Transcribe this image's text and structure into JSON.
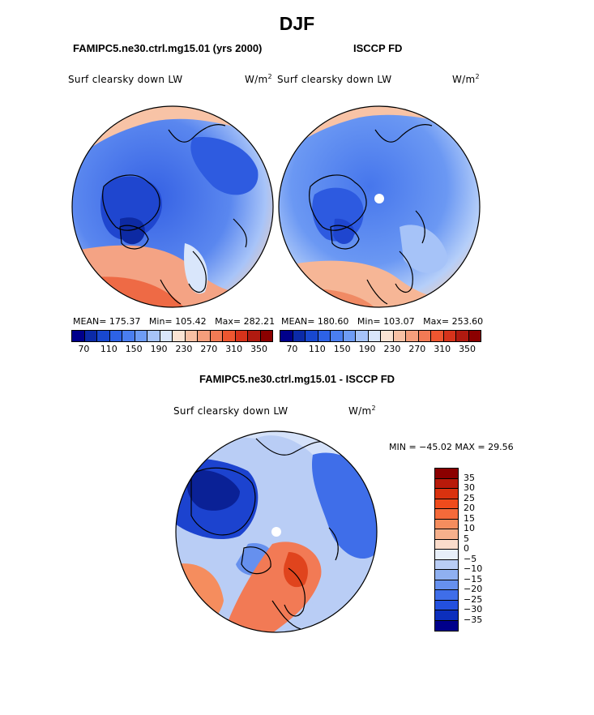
{
  "title": "DJF",
  "panel_left": {
    "heading": "FAMIPC5.ne30.ctrl.mg15.01 (yrs 2000)",
    "variable": "Surf clearsky down LW",
    "units": "W/m",
    "units_exp": "2",
    "mean_label": "MEAN= 175.37",
    "min_label": "Min= 105.42",
    "max_label": "Max= 282.21"
  },
  "panel_right": {
    "heading": "ISCCP FD",
    "variable": "Surf clearsky down LW",
    "units": "W/m",
    "units_exp": "2",
    "mean_label": "MEAN= 180.60",
    "min_label": "Min= 103.07",
    "max_label": "Max= 253.60"
  },
  "panel_diff": {
    "heading": "FAMIPC5.ne30.ctrl.mg15.01 - ISCCP FD",
    "variable": "Surf clearsky down LW",
    "units": "W/m",
    "units_exp": "2",
    "minmax_label": "MIN = −45.02 MAX =  29.56"
  },
  "colorbar_abs": {
    "colors": [
      "#00008b",
      "#0b2aa8",
      "#1848d0",
      "#2d62e6",
      "#4a7ef0",
      "#6e9cf5",
      "#a6c3f8",
      "#d9e6fb",
      "#fbe3d3",
      "#f8c0a4",
      "#f59e7c",
      "#f27a55",
      "#ee5630",
      "#d6331b",
      "#b01a10",
      "#8b0000"
    ],
    "ticks": [
      "70",
      "110",
      "150",
      "190",
      "230",
      "270",
      "310",
      "350"
    ]
  },
  "colorbar_diff": {
    "colors": [
      "#8b0000",
      "#b81a0a",
      "#d9320f",
      "#ef4b1c",
      "#f56a3a",
      "#f58d5e",
      "#f6b08c",
      "#fbdccb",
      "#e8eff9",
      "#b9cdf5",
      "#8fb0f1",
      "#6690ee",
      "#3f6ee9",
      "#2350dd",
      "#0c2fbd",
      "#00008b"
    ],
    "labels": [
      "35",
      "30",
      "25",
      "20",
      "15",
      "10",
      "5",
      "0",
      "−5",
      "−10",
      "−15",
      "−20",
      "−25",
      "−30",
      "−35"
    ]
  },
  "icons": {
    "pole_marker": "pole-missing-data-icon"
  }
}
